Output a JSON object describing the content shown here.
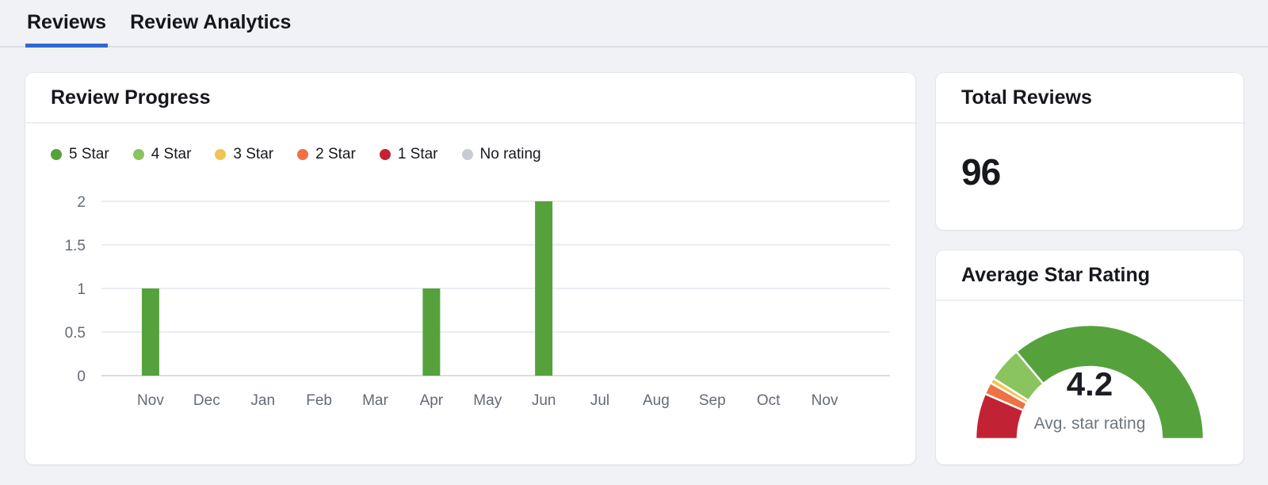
{
  "tabs": [
    {
      "label": "Reviews",
      "active": true
    },
    {
      "label": "Review Analytics",
      "active": false
    }
  ],
  "colors": {
    "accent_blue": "#3069cf",
    "star5": "#55a23c",
    "star4": "#8ac45e",
    "star3": "#f0c553",
    "star2": "#ee7243",
    "star1": "#c22334",
    "no_rating": "#c8cbd1",
    "axis_text": "#646b76",
    "gridline": "#ebedf1",
    "zero_line": "#d9dce2"
  },
  "review_progress": {
    "title": "Review Progress",
    "legend": [
      {
        "label": "5 Star",
        "color": "#55a23c"
      },
      {
        "label": "4 Star",
        "color": "#8ac45e"
      },
      {
        "label": "3 Star",
        "color": "#f0c553"
      },
      {
        "label": "2 Star",
        "color": "#ee7243"
      },
      {
        "label": "1 Star",
        "color": "#c22334"
      },
      {
        "label": "No rating",
        "color": "#c8cbd1"
      }
    ]
  },
  "total_reviews": {
    "title": "Total Reviews",
    "value": "96"
  },
  "average_rating": {
    "title": "Average Star Rating",
    "value": "4.2",
    "caption": "Avg. star rating"
  },
  "chart_data": [
    {
      "id": "review-progress-bar",
      "type": "bar",
      "title": "Review Progress",
      "categories": [
        "Nov",
        "Dec",
        "Jan",
        "Feb",
        "Mar",
        "Apr",
        "May",
        "Jun",
        "Jul",
        "Aug",
        "Sep",
        "Oct",
        "Nov"
      ],
      "series": [
        {
          "name": "5 Star",
          "color": "#55a23c",
          "values": [
            1,
            0,
            0,
            0,
            0,
            1,
            0,
            2,
            0,
            0,
            0,
            0,
            0
          ]
        },
        {
          "name": "4 Star",
          "color": "#8ac45e",
          "values": [
            0,
            0,
            0,
            0,
            0,
            0,
            0,
            0,
            0,
            0,
            0,
            0,
            0
          ]
        },
        {
          "name": "3 Star",
          "color": "#f0c553",
          "values": [
            0,
            0,
            0,
            0,
            0,
            0,
            0,
            0,
            0,
            0,
            0,
            0,
            0
          ]
        },
        {
          "name": "2 Star",
          "color": "#ee7243",
          "values": [
            0,
            0,
            0,
            0,
            0,
            0,
            0,
            0,
            0,
            0,
            0,
            0,
            0
          ]
        },
        {
          "name": "1 Star",
          "color": "#c22334",
          "values": [
            0,
            0,
            0,
            0,
            0,
            0,
            0,
            0,
            0,
            0,
            0,
            0,
            0
          ]
        },
        {
          "name": "No rating",
          "color": "#c8cbd1",
          "values": [
            0,
            0,
            0,
            0,
            0,
            0,
            0,
            0,
            0,
            0,
            0,
            0,
            0
          ]
        }
      ],
      "xlabel": "",
      "ylabel": "",
      "ylim": [
        0,
        2
      ],
      "yticks": [
        0,
        0.5,
        1,
        1.5,
        2
      ],
      "grid": true,
      "legend_position": "top"
    },
    {
      "id": "avg-star-gauge",
      "type": "pie",
      "shape": "half-donut",
      "center_value": "4.2",
      "center_label": "Avg. star rating",
      "start_angle": 180,
      "end_angle": 0,
      "segments": [
        {
          "label": "1 Star",
          "color": "#c22334",
          "fraction": 0.13
        },
        {
          "label": "2 Star",
          "color": "#ee7243",
          "fraction": 0.034
        },
        {
          "label": "3 Star",
          "color": "#f0c553",
          "fraction": 0.015
        },
        {
          "label": "4 Star",
          "color": "#8ac45e",
          "fraction": 0.099
        },
        {
          "label": "5 Star",
          "color": "#55a23c",
          "fraction": 0.722
        }
      ]
    }
  ]
}
